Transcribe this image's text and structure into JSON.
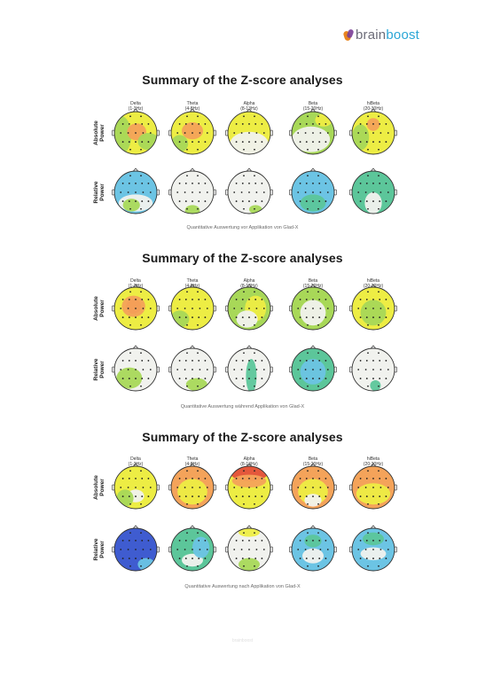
{
  "brand": {
    "part1": "brain",
    "part2": "boost"
  },
  "col_labels": [
    {
      "name": "Delta",
      "range": "(1-3Hz)"
    },
    {
      "name": "Theta",
      "range": "(4-8Hz)"
    },
    {
      "name": "Alpha",
      "range": "(8-13Hz)"
    },
    {
      "name": "Beta",
      "range": "(15-20Hz)"
    },
    {
      "name": "hiBeta",
      "range": "(20-30Hz)"
    }
  ],
  "row_labels": [
    {
      "line1": "Absolute",
      "line2": "Power"
    },
    {
      "line1": "Relative",
      "line2": "Power"
    }
  ],
  "sections": [
    {
      "title": "Summary of the Z-score analyses",
      "caption": "Quantitative Auswertung vor Applikation von Glad-X"
    },
    {
      "title": "Summary of the Z-score analyses",
      "caption": "Quantitative Auswertung während Applikation von Glad-X"
    },
    {
      "title": "Summary of the Z-score analyses",
      "caption": "Quantitative Auswertung nach Applikation von Glad-X"
    }
  ],
  "footer": "brainboost",
  "colors": {
    "yellow": "#eded44",
    "green": "#a8d858",
    "light": "#f1f2ee",
    "cyan": "#6cc4e4",
    "teal": "#5cc69a",
    "orange": "#f4a35a",
    "red": "#e4503c",
    "blue": "#3f5cd0"
  }
}
